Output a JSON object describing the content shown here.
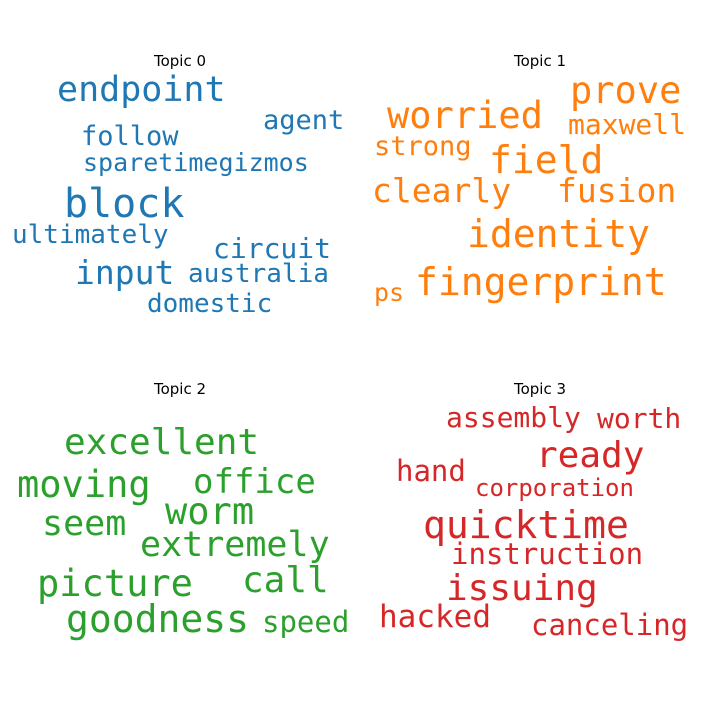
{
  "chart_data": [
    {
      "type": "wordcloud",
      "title": "Topic 0",
      "color": "#1f77b4",
      "words": [
        "endpoint",
        "agent",
        "follow",
        "sparetimegizmos",
        "block",
        "ultimately",
        "circuit",
        "input",
        "australia",
        "domestic"
      ]
    },
    {
      "type": "wordcloud",
      "title": "Topic 1",
      "color": "#ff7f0e",
      "words": [
        "prove",
        "worried",
        "maxwell",
        "strong",
        "field",
        "clearly",
        "fusion",
        "identity",
        "ps",
        "fingerprint"
      ]
    },
    {
      "type": "wordcloud",
      "title": "Topic 2",
      "color": "#2ca02c",
      "words": [
        "excellent",
        "moving",
        "office",
        "worm",
        "seem",
        "extremely",
        "picture",
        "call",
        "goodness",
        "speed"
      ]
    },
    {
      "type": "wordcloud",
      "title": "Topic 3",
      "color": "#d62728",
      "words": [
        "assembly",
        "worth",
        "ready",
        "hand",
        "corporation",
        "quicktime",
        "instruction",
        "issuing",
        "hacked",
        "canceling"
      ]
    }
  ]
}
